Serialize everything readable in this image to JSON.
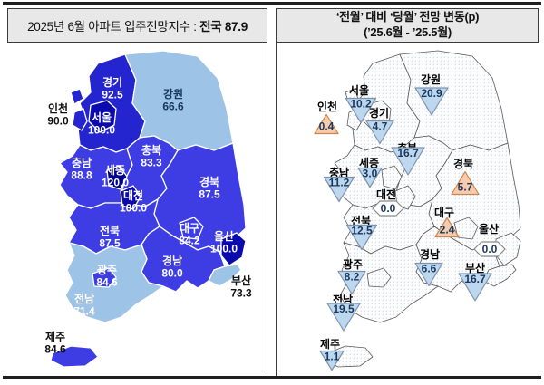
{
  "left_panel": {
    "title_prefix": "2025년 6월 아파트 입주전망지수 : ",
    "title_national": "전국 87.9",
    "regions": [
      {
        "id": "seoul",
        "name": "서울",
        "value": "100.0",
        "tone": "tone_100"
      },
      {
        "id": "incheon",
        "name": "인천",
        "value": "90.0",
        "tone": "tone_90"
      },
      {
        "id": "gyeonggi",
        "name": "경기",
        "value": "92.5",
        "tone": "tone_90"
      },
      {
        "id": "gangwon",
        "name": "강원",
        "value": "66.6",
        "tone": "tone_low"
      },
      {
        "id": "chungbuk",
        "name": "충북",
        "value": "83.3",
        "tone": "tone_mid"
      },
      {
        "id": "chungnam",
        "name": "충남",
        "value": "88.8",
        "tone": "tone_mid"
      },
      {
        "id": "sejong",
        "name": "세종",
        "value": "120.0",
        "tone": "tone_120"
      },
      {
        "id": "daejeon",
        "name": "대전",
        "value": "100.0",
        "tone": "tone_100"
      },
      {
        "id": "gyeongbuk",
        "name": "경북",
        "value": "87.5",
        "tone": "tone_mid"
      },
      {
        "id": "jeonbuk",
        "name": "전북",
        "value": "87.5",
        "tone": "tone_mid"
      },
      {
        "id": "daegu",
        "name": "대구",
        "value": "84.2",
        "tone": "tone_mid"
      },
      {
        "id": "ulsan",
        "name": "울산",
        "value": "100.0",
        "tone": "tone_100"
      },
      {
        "id": "gyeongnam",
        "name": "경남",
        "value": "80.0",
        "tone": "tone_mid"
      },
      {
        "id": "gwangju",
        "name": "광주",
        "value": "84.6",
        "tone": "tone_mid"
      },
      {
        "id": "jeonnam",
        "name": "전남",
        "value": "71.4",
        "tone": "tone_low"
      },
      {
        "id": "busan",
        "name": "부산",
        "value": "73.3",
        "tone": "tone_low"
      },
      {
        "id": "jeju",
        "name": "제주",
        "value": "84.6",
        "tone": "tone_mid"
      }
    ]
  },
  "right_panel": {
    "title_line1": "‘전월’ 대비 ‘당월’ 전망 변동(p)",
    "title_line2": "(’25.6월 - ’25.5월)",
    "regions": [
      {
        "id": "seoul",
        "name": "서울",
        "value": "10.2",
        "direction": "down"
      },
      {
        "id": "incheon",
        "name": "인천",
        "value": "0.4",
        "direction": "up"
      },
      {
        "id": "gyeonggi",
        "name": "경기",
        "value": "4.7",
        "direction": "down"
      },
      {
        "id": "gangwon",
        "name": "강원",
        "value": "20.9",
        "direction": "down"
      },
      {
        "id": "chungbuk",
        "name": "충북",
        "value": "16.7",
        "direction": "down"
      },
      {
        "id": "chungnam",
        "name": "충남",
        "value": "11.2",
        "direction": "down"
      },
      {
        "id": "sejong",
        "name": "세종",
        "value": "3.0",
        "direction": "down"
      },
      {
        "id": "daejeon",
        "name": "대전",
        "value": "0.0",
        "direction": "zero"
      },
      {
        "id": "gyeongbuk",
        "name": "경북",
        "value": "5.7",
        "direction": "up"
      },
      {
        "id": "jeonbuk",
        "name": "전북",
        "value": "12.5",
        "direction": "down"
      },
      {
        "id": "daegu",
        "name": "대구",
        "value": "2.4",
        "direction": "up"
      },
      {
        "id": "ulsan",
        "name": "울산",
        "value": "0.0",
        "direction": "zero"
      },
      {
        "id": "gyeongnam",
        "name": "경남",
        "value": "6.6",
        "direction": "down"
      },
      {
        "id": "gwangju",
        "name": "광주",
        "value": "8.2",
        "direction": "down"
      },
      {
        "id": "jeonnam",
        "name": "전남",
        "value": "19.5",
        "direction": "down"
      },
      {
        "id": "busan",
        "name": "부산",
        "value": "16.7",
        "direction": "down"
      },
      {
        "id": "jeju",
        "name": "제주",
        "value": "1.1",
        "direction": "down"
      }
    ]
  },
  "colors": {
    "tone_120": "#00008B",
    "tone_100": "#0B0BAD",
    "tone_90": "#2525CF",
    "tone_mid": "#3D3DE3",
    "tone_low": "#9DC3E6",
    "label_white": "#FFFFFF",
    "label_dark": "#111111",
    "label_navy": "#17375E",
    "down_fill": "#BDD7EE",
    "down_stroke": "#7E93AE",
    "up_fill": "#F8CBAD",
    "up_stroke": "#C9874F",
    "zero_fill": "#FFFFFF",
    "zero_stroke": "#8A8A8A",
    "value_text": "#17375E",
    "map_dot": "#C9D5E5",
    "header_bg": "#E8E8E8",
    "border_dark": "#1F1F1F"
  },
  "chart_data": [
    {
      "type": "heatmap",
      "subtype": "choropleth-map-of-south-korea",
      "title": "2025년 6월 아파트 입주전망지수 : 전국 87.9",
      "national_value": 87.9,
      "categories": [
        "서울",
        "인천",
        "경기",
        "강원",
        "충북",
        "충남",
        "세종",
        "대전",
        "경북",
        "전북",
        "대구",
        "울산",
        "경남",
        "광주",
        "전남",
        "부산",
        "제주"
      ],
      "values": [
        100.0,
        90.0,
        92.5,
        66.6,
        83.3,
        88.8,
        120.0,
        100.0,
        87.5,
        87.5,
        84.2,
        100.0,
        80.0,
        84.6,
        71.4,
        73.3,
        84.6
      ],
      "legend_position": "none",
      "notes": "darker blue = higher index, light blue = lower index"
    },
    {
      "type": "heatmap",
      "subtype": "symbol-map-of-south-korea",
      "title": "‘전월’ 대비 ‘당월’ 전망 변동(p) (’25.6월 - ’25.5월)",
      "categories": [
        "서울",
        "인천",
        "경기",
        "강원",
        "충북",
        "충남",
        "세종",
        "대전",
        "경북",
        "전북",
        "대구",
        "울산",
        "경남",
        "광주",
        "전남",
        "부산",
        "제주"
      ],
      "values": [
        -10.2,
        0.4,
        -4.7,
        -20.9,
        -16.7,
        -11.2,
        -3.0,
        0.0,
        5.7,
        -12.5,
        2.4,
        0.0,
        -6.6,
        -8.2,
        -19.5,
        -16.7,
        -1.1
      ],
      "legend_position": "none",
      "notes": "blue down-triangle = decrease, orange up-triangle = increase, white diamond = no change"
    }
  ]
}
